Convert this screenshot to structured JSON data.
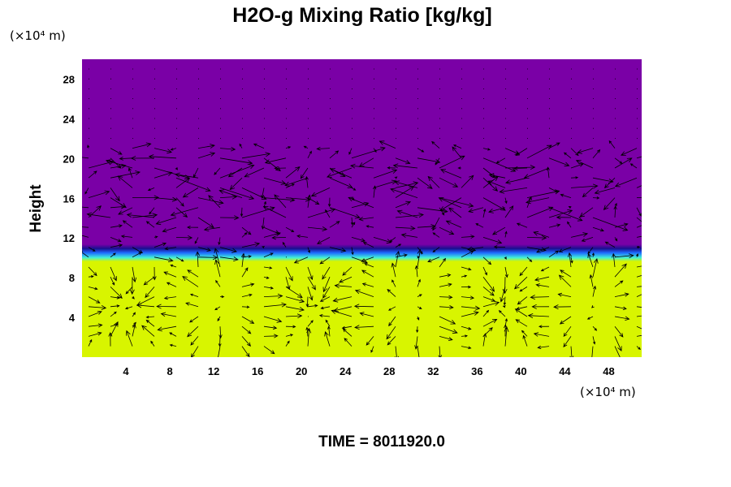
{
  "chart_data": {
    "type": "heatmap",
    "title": "H2O-g Mixing Ratio [kg/kg]",
    "ylabel": "Height",
    "x_unit": "(×10⁴ m)",
    "y_unit": "(×10⁴ m)",
    "x_ticks": [
      4,
      8,
      12,
      16,
      20,
      24,
      28,
      32,
      36,
      40,
      44,
      48
    ],
    "y_ticks": [
      4,
      8,
      12,
      16,
      20,
      24,
      28
    ],
    "xlim": [
      0,
      51
    ],
    "ylim": [
      0,
      30
    ],
    "colors": {
      "upper_layer": "#7a00a6",
      "lower_layer": "#d8f500",
      "interface_dark": "#101a8c",
      "interface_mid": "#1e7cff",
      "interface_light": "#40f0d8",
      "vectors": "#000000"
    },
    "layers": [
      {
        "from_height": 0,
        "to_height": 9.8,
        "color_key": "lower_layer"
      },
      {
        "from_height": 9.8,
        "to_height": 11.2,
        "color_key": "interface"
      },
      {
        "from_height": 11.2,
        "to_height": 30,
        "color_key": "upper_layer"
      }
    ],
    "wind_vectors": "overlaid arrow field"
  },
  "footer": {
    "time_label": "TIME = 8011920.0"
  }
}
